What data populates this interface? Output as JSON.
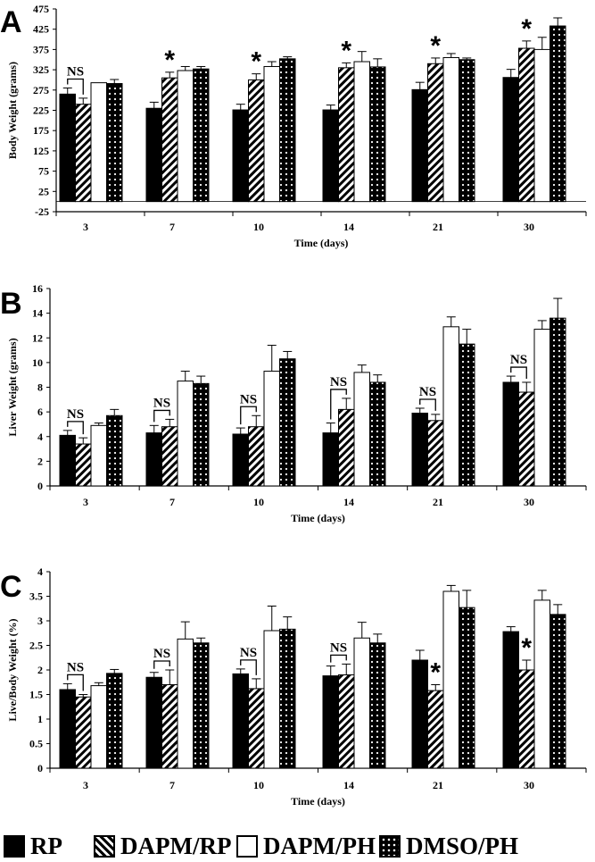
{
  "legend": {
    "items": [
      {
        "label": "RP",
        "style": "solid-black"
      },
      {
        "label": "DAPM/RP",
        "style": "diagonal-hatch"
      },
      {
        "label": "DAPM/PH",
        "style": "white"
      },
      {
        "label": "DMSO/PH",
        "style": "black-dotted"
      }
    ]
  },
  "chart_data": [
    {
      "type": "bar",
      "panel_label": "A",
      "title": "",
      "xlabel": "Time (days)",
      "ylabel": "Body Weight (grams)",
      "categories": [
        "3",
        "7",
        "10",
        "14",
        "21",
        "30"
      ],
      "ylim": [
        -25,
        475
      ],
      "yticks": [
        -25,
        25,
        75,
        125,
        175,
        225,
        275,
        325,
        375,
        425,
        475
      ],
      "grid": false,
      "series": [
        {
          "name": "RP",
          "values": [
            265,
            230,
            226,
            226,
            276,
            306
          ],
          "errors": [
            15,
            15,
            14,
            12,
            18,
            20
          ]
        },
        {
          "name": "DAPM/RP",
          "values": [
            240,
            305,
            300,
            330,
            340,
            378
          ],
          "errors": [
            15,
            14,
            15,
            12,
            14,
            18
          ]
        },
        {
          "name": "DAPM/PH",
          "values": [
            293,
            323,
            333,
            345,
            355,
            375
          ],
          "errors": [
            0,
            10,
            12,
            25,
            10,
            30
          ]
        },
        {
          "name": "DMSO/PH",
          "values": [
            291,
            327,
            352,
            332,
            350,
            433
          ],
          "errors": [
            10,
            6,
            5,
            20,
            4,
            20
          ]
        }
      ],
      "annotations": [
        {
          "category": "3",
          "text": "NS",
          "type": "bracket"
        },
        {
          "category": "7",
          "text": "*",
          "type": "star"
        },
        {
          "category": "10",
          "text": "*",
          "type": "star"
        },
        {
          "category": "14",
          "text": "*",
          "type": "star"
        },
        {
          "category": "21",
          "text": "*",
          "type": "star"
        },
        {
          "category": "30",
          "text": "*",
          "type": "star"
        }
      ]
    },
    {
      "type": "bar",
      "panel_label": "B",
      "title": "",
      "xlabel": "Time (days)",
      "ylabel": "Liver Weight (grams)",
      "categories": [
        "3",
        "7",
        "10",
        "14",
        "21",
        "30"
      ],
      "ylim": [
        0,
        16
      ],
      "yticks": [
        0,
        2,
        4,
        6,
        8,
        10,
        12,
        14,
        16
      ],
      "grid": false,
      "series": [
        {
          "name": "RP",
          "values": [
            4.1,
            4.3,
            4.2,
            4.3,
            5.9,
            8.4
          ],
          "errors": [
            0.4,
            0.6,
            0.5,
            0.8,
            0.4,
            0.5
          ]
        },
        {
          "name": "DAPM/RP",
          "values": [
            3.4,
            4.8,
            4.8,
            6.2,
            5.3,
            7.6
          ],
          "errors": [
            0.5,
            0.6,
            0.9,
            0.9,
            0.5,
            0.8
          ]
        },
        {
          "name": "DAPM/PH",
          "values": [
            4.9,
            8.5,
            9.3,
            9.2,
            12.9,
            12.7
          ],
          "errors": [
            0.2,
            0.8,
            2.1,
            0.6,
            0.8,
            0.7
          ]
        },
        {
          "name": "DMSO/PH",
          "values": [
            5.7,
            8.3,
            10.3,
            8.4,
            11.5,
            13.6
          ],
          "errors": [
            0.5,
            0.6,
            0.6,
            0.6,
            1.2,
            1.6
          ]
        }
      ],
      "annotations": [
        {
          "category": "3",
          "text": "NS",
          "type": "bracket"
        },
        {
          "category": "7",
          "text": "NS",
          "type": "bracket"
        },
        {
          "category": "10",
          "text": "NS",
          "type": "bracket"
        },
        {
          "category": "14",
          "text": "NS",
          "type": "bracket"
        },
        {
          "category": "21",
          "text": "NS",
          "type": "bracket"
        },
        {
          "category": "30",
          "text": "NS",
          "type": "bracket"
        }
      ]
    },
    {
      "type": "bar",
      "panel_label": "C",
      "title": "",
      "xlabel": "Time (days)",
      "ylabel": "Live/Body Weight (%)",
      "categories": [
        "3",
        "7",
        "10",
        "14",
        "21",
        "30"
      ],
      "ylim": [
        0,
        4
      ],
      "yticks": [
        0,
        0.5,
        1,
        1.5,
        2,
        2.5,
        3,
        3.5,
        4
      ],
      "grid": false,
      "series": [
        {
          "name": "RP",
          "values": [
            1.6,
            1.85,
            1.92,
            1.88,
            2.2,
            2.78
          ],
          "errors": [
            0.12,
            0.1,
            0.1,
            0.2,
            0.2,
            0.1
          ]
        },
        {
          "name": "DAPM/RP",
          "values": [
            1.45,
            1.7,
            1.62,
            1.9,
            1.58,
            2.0
          ],
          "errors": [
            0.05,
            0.3,
            0.2,
            0.22,
            0.12,
            0.2
          ]
        },
        {
          "name": "DAPM/PH",
          "values": [
            1.68,
            2.63,
            2.8,
            2.65,
            3.6,
            3.42
          ],
          "errors": [
            0.06,
            0.35,
            0.5,
            0.32,
            0.12,
            0.2
          ]
        },
        {
          "name": "DMSO/PH",
          "values": [
            1.93,
            2.55,
            2.83,
            2.55,
            3.27,
            3.13
          ],
          "errors": [
            0.08,
            0.1,
            0.25,
            0.18,
            0.35,
            0.2
          ]
        }
      ],
      "annotations": [
        {
          "category": "3",
          "text": "NS",
          "type": "bracket"
        },
        {
          "category": "7",
          "text": "NS",
          "type": "bracket"
        },
        {
          "category": "10",
          "text": "NS",
          "type": "bracket"
        },
        {
          "category": "14",
          "text": "NS",
          "type": "bracket"
        },
        {
          "category": "21",
          "text": "*",
          "type": "star"
        },
        {
          "category": "30",
          "text": "*",
          "type": "star"
        }
      ]
    }
  ]
}
